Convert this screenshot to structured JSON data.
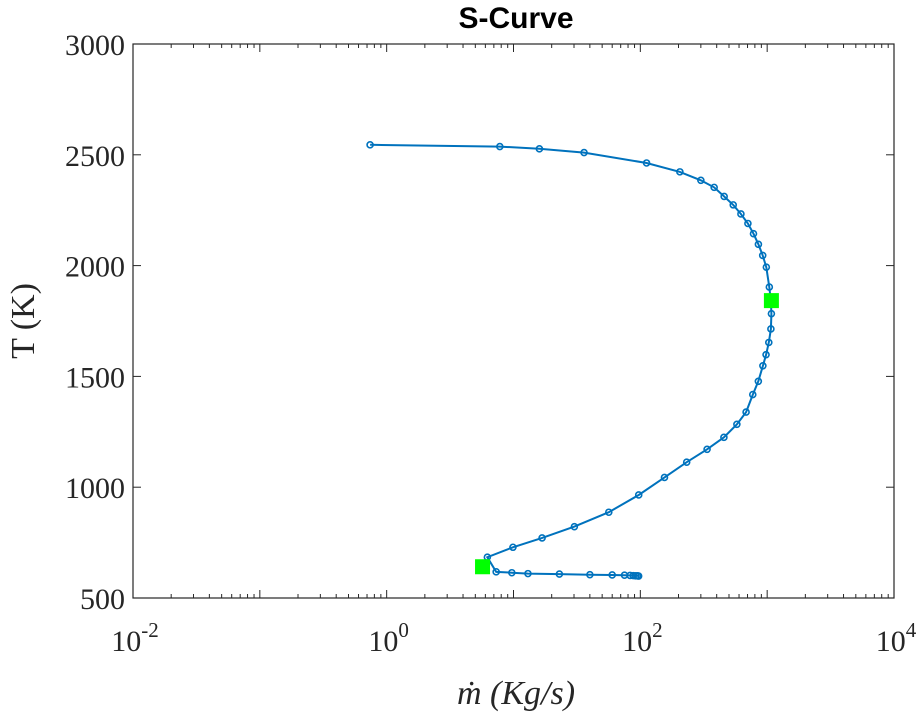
{
  "chart_data": {
    "type": "line",
    "title": "S-Curve",
    "xlabel": "ṁ (Kg/s)",
    "ylabel": "T (K)",
    "x_scale": "log",
    "xlim": [
      0.01,
      10000
    ],
    "ylim": [
      500,
      3000
    ],
    "grid": false,
    "x_ticks": [
      {
        "value": 0.01,
        "base": "10",
        "exp": "-2"
      },
      {
        "value": 1,
        "base": "10",
        "exp": "0"
      },
      {
        "value": 100,
        "base": "10",
        "exp": "2"
      },
      {
        "value": 10000,
        "base": "10",
        "exp": "4"
      }
    ],
    "y_ticks": [
      {
        "value": 500,
        "label": "500"
      },
      {
        "value": 1000,
        "label": "1000"
      },
      {
        "value": 1500,
        "label": "1500"
      },
      {
        "value": 2000,
        "label": "2000"
      },
      {
        "value": 2500,
        "label": "2500"
      },
      {
        "value": 3000,
        "label": "3000"
      }
    ],
    "colors": {
      "series": "#0072BD",
      "marker_highlight": "#00FF00",
      "axes": "#262626"
    },
    "series": [
      {
        "x": [
          0.74,
          7.8,
          16,
          36,
          112,
          205,
          300,
          382,
          458,
          540,
          621,
          705,
          780,
          853,
          922,
          985,
          1040,
          1070,
          1080,
          1070,
          1030,
          980,
          925,
          852,
          770,
          682,
          577,
          456,
          336,
          232,
          155,
          97.1,
          56.4,
          30.2,
          16.8,
          9.9,
          6.22,
          7.3,
          9.7,
          13,
          23,
          40,
          60,
          75,
          83,
          88,
          92,
          95,
          97
        ],
        "y": [
          2545,
          2537,
          2527,
          2510,
          2463,
          2423,
          2385,
          2353,
          2312,
          2274,
          2233,
          2190,
          2144,
          2096,
          2046,
          1993,
          1903,
          1840,
          1783,
          1714,
          1653,
          1598,
          1548,
          1478,
          1418,
          1339,
          1284,
          1225,
          1171,
          1113,
          1044,
          965,
          887,
          822,
          771,
          729,
          684,
          618,
          614,
          610,
          608,
          605,
          604,
          603,
          602,
          601,
          600,
          600,
          599
        ]
      }
    ],
    "highlight_points": [
      {
        "x": 1080,
        "y": 1842
      },
      {
        "x": 5.7,
        "y": 641
      }
    ]
  }
}
